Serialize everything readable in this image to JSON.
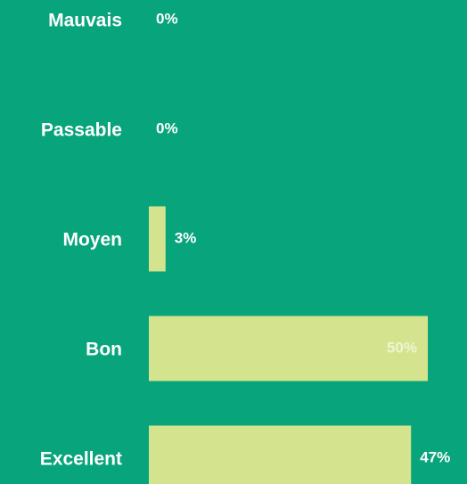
{
  "chart_data": {
    "type": "bar",
    "orientation": "horizontal",
    "categories": [
      "Mauvais",
      "Passable",
      "Moyen",
      "Bon",
      "Excellent"
    ],
    "values": [
      0,
      0,
      3,
      50,
      47
    ],
    "value_labels": [
      "0%",
      "0%",
      "3%",
      "50%",
      "47%"
    ],
    "color": "#d4e48e"
  }
}
